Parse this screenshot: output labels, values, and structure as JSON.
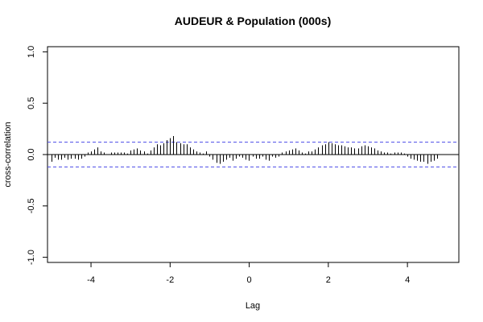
{
  "chart_data": {
    "type": "bar",
    "title": "AUDEUR & Population (000s)",
    "xlabel": "Lag",
    "ylabel": "cross-correlation",
    "xlim": [
      -5.1,
      5.3
    ],
    "ylim": [
      -1.05,
      1.05
    ],
    "xticks": [
      -4,
      -2,
      0,
      2,
      4
    ],
    "xtick_labels": [
      "-4",
      "-2",
      "0",
      "2",
      "4"
    ],
    "yticks": [
      -1.0,
      -0.5,
      0.0,
      0.5,
      1.0
    ],
    "ytick_labels": [
      "-1.0",
      "-0.5",
      "0.0",
      "0.5",
      "1.0"
    ],
    "confidence_band": 0.12,
    "zero_line": true,
    "grid": false,
    "colors": {
      "bars": "#000000",
      "confidence": "#4a4ae8",
      "axis": "#000000"
    },
    "lag_start": -5.0,
    "lag_step": 0.0833,
    "values": [
      -0.07,
      -0.03,
      -0.05,
      -0.05,
      -0.03,
      -0.05,
      -0.04,
      -0.04,
      -0.05,
      -0.04,
      -0.02,
      0.02,
      0.03,
      0.05,
      0.07,
      0.03,
      0.02,
      0.0,
      0.02,
      0.02,
      0.02,
      0.02,
      0.02,
      0.01,
      0.04,
      0.05,
      0.06,
      0.04,
      0.03,
      0.01,
      0.04,
      0.07,
      0.1,
      0.09,
      0.11,
      0.14,
      0.16,
      0.18,
      0.12,
      0.11,
      0.1,
      0.1,
      0.07,
      0.05,
      0.03,
      0.02,
      0.01,
      0.03,
      -0.02,
      -0.05,
      -0.08,
      -0.09,
      -0.07,
      -0.05,
      -0.03,
      -0.06,
      -0.04,
      -0.02,
      -0.03,
      -0.05,
      -0.06,
      -0.02,
      -0.04,
      -0.04,
      -0.02,
      -0.05,
      -0.06,
      -0.02,
      -0.03,
      -0.02,
      0.02,
      0.03,
      0.04,
      0.05,
      0.06,
      0.04,
      0.02,
      0.01,
      0.03,
      0.03,
      0.05,
      0.07,
      0.09,
      0.1,
      0.12,
      0.11,
      0.1,
      0.09,
      0.09,
      0.08,
      0.07,
      0.07,
      0.06,
      0.06,
      0.08,
      0.09,
      0.08,
      0.07,
      0.06,
      0.04,
      0.03,
      0.02,
      0.02,
      0.01,
      0.02,
      0.02,
      0.02,
      0.01,
      -0.02,
      -0.04,
      -0.05,
      -0.06,
      -0.07,
      -0.07,
      -0.09,
      -0.07,
      -0.06,
      -0.04
    ]
  }
}
